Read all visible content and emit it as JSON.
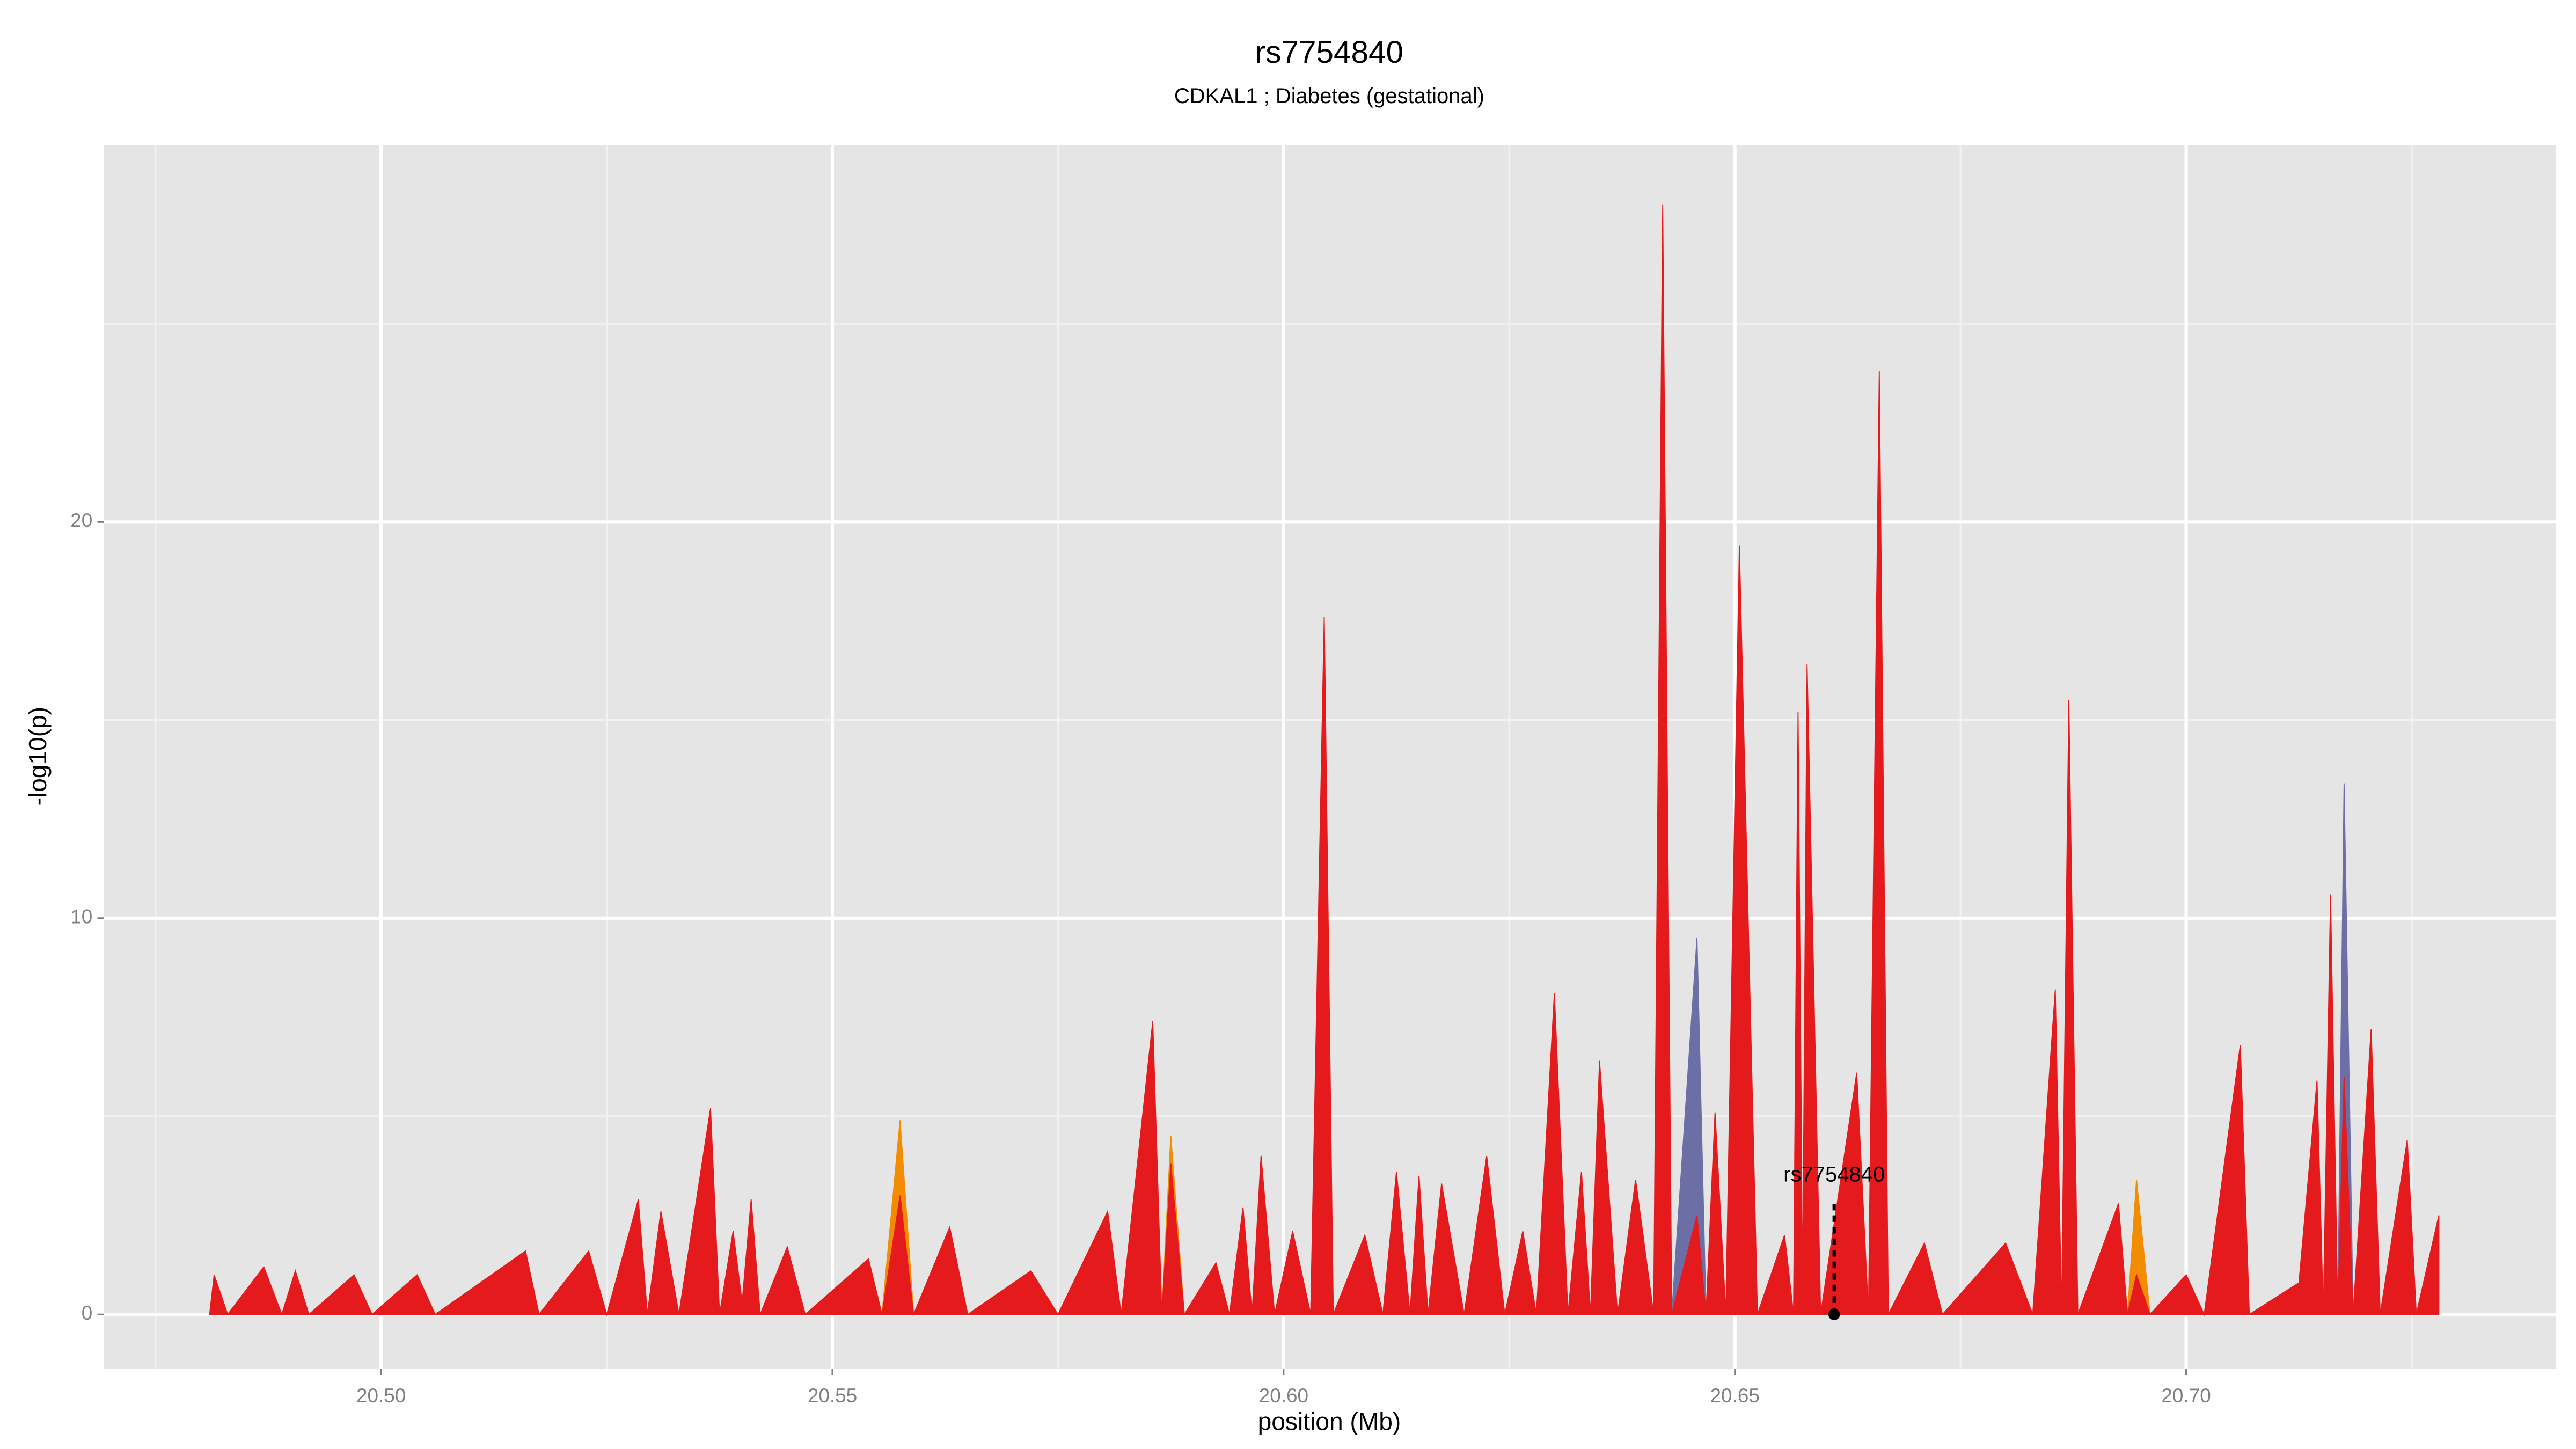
{
  "chart_data": {
    "type": "area",
    "title": "rs7754840",
    "subtitle": "CDKAL1 ; Diabetes (gestational)",
    "xlabel": "position (Mb)",
    "ylabel": "-log10(p)",
    "xlim": [
      20.4693,
      20.741
    ],
    "ylim": [
      -1.375,
      29.5
    ],
    "xticks": [
      {
        "value": 20.5,
        "label": "20.50"
      },
      {
        "value": 20.55,
        "label": "20.55"
      },
      {
        "value": 20.6,
        "label": "20.60"
      },
      {
        "value": 20.65,
        "label": "20.65"
      },
      {
        "value": 20.7,
        "label": "20.70"
      }
    ],
    "yticks": [
      0,
      10,
      20
    ],
    "xminor": [
      20.475,
      20.525,
      20.575,
      20.625,
      20.675,
      20.725
    ],
    "yminor": [
      5,
      15,
      25
    ],
    "grid": true,
    "x": [
      20.481,
      20.4815,
      20.483,
      20.487,
      20.489,
      20.4905,
      20.492,
      20.497,
      20.499,
      20.504,
      20.506,
      20.516,
      20.5175,
      20.523,
      20.525,
      20.5285,
      20.5295,
      20.531,
      20.533,
      20.5365,
      20.5375,
      20.539,
      20.54,
      20.541,
      20.542,
      20.545,
      20.547,
      20.554,
      20.5555,
      20.5575,
      20.559,
      20.563,
      20.565,
      20.572,
      20.575,
      20.5805,
      20.582,
      20.5855,
      20.5865,
      20.5875,
      20.589,
      20.5925,
      20.594,
      20.5955,
      20.5965,
      20.5975,
      20.599,
      20.601,
      20.603,
      20.6045,
      20.6055,
      20.609,
      20.611,
      20.6125,
      20.614,
      20.615,
      20.616,
      20.6175,
      20.62,
      20.6225,
      20.6245,
      20.6265,
      20.628,
      20.63,
      20.6315,
      20.633,
      20.634,
      20.635,
      20.637,
      20.639,
      20.641,
      20.642,
      20.643,
      20.6458,
      20.6468,
      20.6478,
      20.649,
      20.6505,
      20.6525,
      20.6555,
      20.6565,
      20.657,
      20.6575,
      20.658,
      20.6595,
      20.6635,
      20.6648,
      20.666,
      20.667,
      20.671,
      20.673,
      20.68,
      20.683,
      20.6855,
      20.6862,
      20.687,
      20.688,
      20.6925,
      20.6935,
      20.6945,
      20.696,
      20.7,
      20.702,
      20.706,
      20.707,
      20.7125,
      20.7145,
      20.7152,
      20.716,
      20.7168,
      20.7175,
      20.7185,
      20.7205,
      20.7215,
      20.7245,
      20.7255,
      20.728
    ],
    "series": [
      {
        "color": "#6b6fa6",
        "values": [
          0,
          0,
          0,
          0,
          0,
          0,
          0,
          0,
          0,
          0,
          0,
          0,
          0,
          0,
          0,
          0,
          0,
          0,
          0,
          0,
          0,
          0,
          0,
          0,
          0,
          0,
          0,
          0,
          0,
          0,
          0,
          0,
          0,
          0,
          0,
          0,
          0,
          0,
          0,
          0,
          0,
          0,
          0,
          0,
          0,
          0,
          0,
          0,
          0,
          15,
          0,
          0,
          0,
          0,
          0,
          0,
          0,
          0,
          0,
          0,
          0,
          0,
          0,
          0,
          0,
          0,
          0,
          0,
          0,
          0,
          0,
          0,
          0,
          9.5,
          0,
          0,
          0,
          0,
          0,
          0,
          0,
          0,
          0,
          0,
          0,
          0,
          0,
          0,
          0,
          0,
          0,
          0,
          0,
          0,
          0,
          0,
          0,
          0,
          0,
          0,
          0,
          0,
          0,
          0,
          0,
          0,
          0,
          0,
          0,
          0,
          13.4,
          0,
          0,
          0,
          0,
          0,
          0
        ]
      },
      {
        "color": "#f28c00",
        "values": [
          0,
          0,
          0,
          0,
          0,
          0,
          0,
          0,
          0,
          0,
          0,
          0,
          0,
          0,
          0,
          0,
          0,
          0,
          0,
          0,
          0,
          0,
          0,
          0,
          0,
          0,
          0,
          0,
          0,
          4.9,
          0,
          0,
          0,
          0,
          0,
          0,
          0,
          0,
          0,
          4.5,
          0,
          0,
          0,
          0,
          0,
          0,
          0,
          0,
          0,
          0,
          0,
          0,
          0,
          0,
          0,
          0,
          0,
          0,
          0,
          0,
          0,
          0,
          0,
          0,
          0,
          0,
          0,
          0,
          0,
          0,
          0,
          0,
          0,
          0,
          0,
          0,
          0,
          0,
          0,
          0,
          0,
          0,
          0,
          0,
          0,
          0,
          0,
          0,
          0,
          0,
          0,
          0,
          0,
          0,
          0,
          0,
          0,
          0,
          0,
          3.4,
          0,
          0,
          0,
          0,
          0,
          0,
          0,
          0,
          0,
          0,
          0,
          0,
          0,
          0,
          0,
          0,
          0
        ]
      },
      {
        "color": "#e41a1c",
        "values": [
          0,
          1.0,
          0,
          1.2,
          0,
          1.1,
          0,
          1.0,
          0,
          1.0,
          0,
          1.6,
          0,
          1.6,
          0,
          2.9,
          0,
          2.6,
          0,
          5.2,
          0,
          2.1,
          0.3,
          2.9,
          0,
          1.7,
          0,
          1.4,
          0,
          3.0,
          0,
          2.2,
          0,
          1.1,
          0,
          2.6,
          0,
          7.4,
          0,
          3.8,
          0,
          1.3,
          0,
          2.7,
          0,
          4.0,
          0,
          2.1,
          0,
          17.6,
          0,
          2.0,
          0,
          3.6,
          0,
          3.5,
          0,
          3.3,
          0,
          4.0,
          0,
          2.1,
          0,
          8.1,
          0,
          3.6,
          0,
          6.4,
          0,
          3.4,
          0,
          28,
          0,
          2.5,
          0,
          5.1,
          0,
          19.4,
          0,
          2.0,
          0,
          15.2,
          0.5,
          16.4,
          0,
          6.1,
          0,
          23.8,
          0,
          1.8,
          0,
          1.8,
          0,
          8.2,
          0,
          15.5,
          0,
          2.8,
          0,
          1.0,
          0,
          1.0,
          0,
          6.8,
          0,
          0.8,
          5.9,
          0,
          10.6,
          0,
          6.0,
          0,
          7.2,
          0,
          4.4,
          0,
          2.5
        ]
      }
    ],
    "annotations": [
      {
        "text": "rs7754840",
        "x": 20.661,
        "y": 0
      }
    ]
  }
}
